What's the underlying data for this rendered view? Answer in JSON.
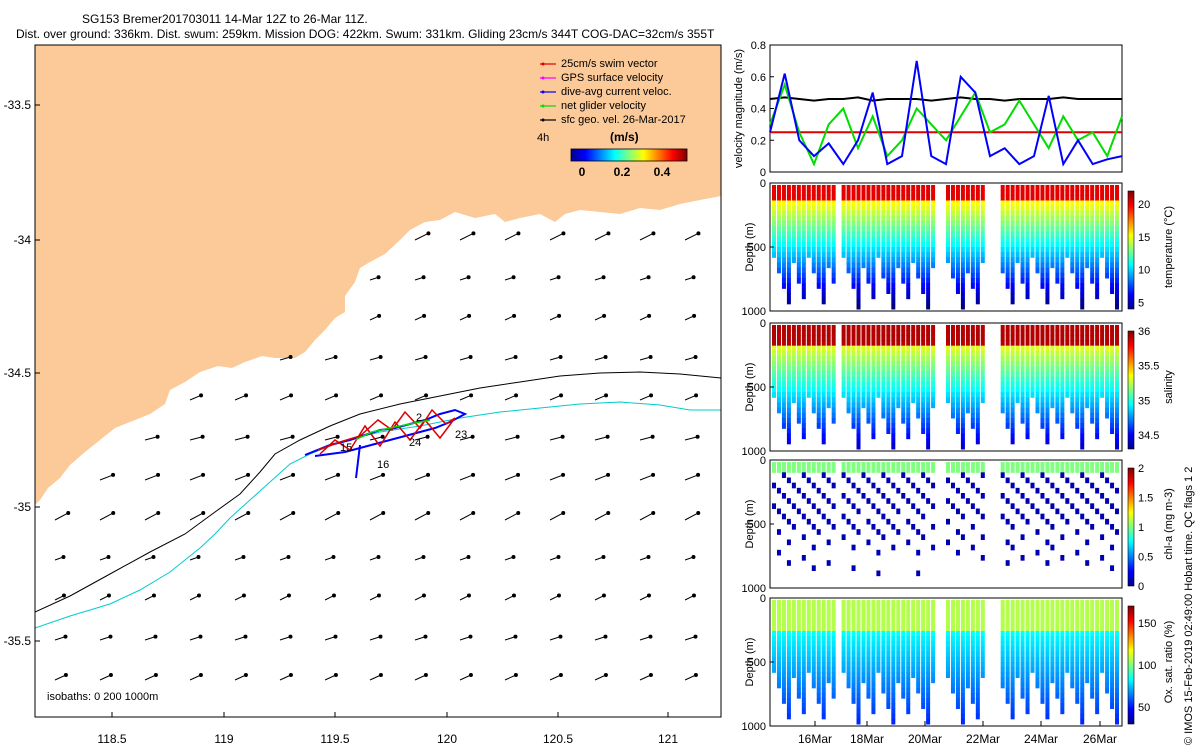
{
  "header": {
    "line1": "SG153 Bremer201703011 14-Mar 12Z to 26-Mar 11Z.",
    "line2": "Dist. over ground: 336km. Dist. swum: 259km. Mission DOG: 422km. Swum: 331km. Gliding 23cm/s 344T COG-DAC=32cm/s 355T"
  },
  "map": {
    "legend": [
      {
        "label": "25cm/s swim vector",
        "color": "#dd0000"
      },
      {
        "label": "GPS surface velocity",
        "color": "#ff00ff"
      },
      {
        "label": "dive-avg current veloc.",
        "color": "#0000ff"
      },
      {
        "label": "net glider velocity",
        "color": "#00dd00"
      },
      {
        "label": "sfc geo. vel. 26-Mar-2017",
        "color": "#000000"
      }
    ],
    "legend_note": "4h",
    "colorbar_unit": "(m/s)",
    "colorbar_ticks": [
      "0",
      "0.2",
      "0.4"
    ],
    "lon_ticks": [
      "118.5",
      "119",
      "119.5",
      "120",
      "120.5",
      "121"
    ],
    "lat_ticks": [
      "-33.5",
      "-34",
      "-34.5",
      "-35",
      "-35.5"
    ],
    "isobaths_label": "isobaths: 0   200   1000m",
    "track_labels": [
      "15",
      "16",
      "24",
      "23",
      "2"
    ],
    "land_color": "#fcc998",
    "isobath_200_color": "#000000",
    "isobath_1000_color": "#00cccc"
  },
  "chart_data": [
    {
      "type": "line",
      "ylabel": "velocity magnitude (m/s)",
      "ylim": [
        0,
        0.8
      ],
      "yticks": [
        "0",
        "0.2",
        "0.4",
        "0.6",
        "0.8"
      ],
      "series": [
        {
          "color": "#000000",
          "values": [
            0.46,
            0.47,
            0.46,
            0.45,
            0.46,
            0.46,
            0.47,
            0.45,
            0.46,
            0.46,
            0.46,
            0.45,
            0.46,
            0.47,
            0.46,
            0.46,
            0.45,
            0.46,
            0.46,
            0.46,
            0.47,
            0.46,
            0.46,
            0.46,
            0.46
          ]
        },
        {
          "color": "#dd0000",
          "values": [
            0.25,
            0.25,
            0.25,
            0.25,
            0.25,
            0.25,
            0.25,
            0.25,
            0.25,
            0.25,
            0.25,
            0.25,
            0.25,
            0.25,
            0.25,
            0.25,
            0.25,
            0.25,
            0.25,
            0.25,
            0.25,
            0.25,
            0.25,
            0.25,
            0.25
          ]
        },
        {
          "color": "#00dd00",
          "values": [
            0.3,
            0.55,
            0.25,
            0.05,
            0.3,
            0.4,
            0.15,
            0.35,
            0.1,
            0.2,
            0.4,
            0.3,
            0.2,
            0.35,
            0.5,
            0.25,
            0.3,
            0.45,
            0.3,
            0.15,
            0.35,
            0.2,
            0.25,
            0.1,
            0.35
          ]
        },
        {
          "color": "#0000ff",
          "values": [
            0.25,
            0.62,
            0.2,
            0.1,
            0.18,
            0.05,
            0.2,
            0.5,
            0.05,
            0.1,
            0.7,
            0.1,
            0.05,
            0.6,
            0.5,
            0.1,
            0.15,
            0.05,
            0.1,
            0.48,
            0.05,
            0.2,
            0.05,
            0.08,
            0.1
          ]
        }
      ]
    },
    {
      "type": "heatmap",
      "ylabel": "Depth (m)",
      "yticks": [
        "0",
        "500",
        "1000"
      ],
      "colorbar_label": "temperature (°C)",
      "colorbar_ticks": [
        "5",
        "10",
        "15",
        "20"
      ],
      "range": [
        4,
        22
      ]
    },
    {
      "type": "heatmap",
      "ylabel": "Depth (m)",
      "yticks": [
        "0",
        "500",
        "1000"
      ],
      "colorbar_label": "salinity",
      "colorbar_ticks": [
        "34.5",
        "35",
        "35.5",
        "36"
      ],
      "range": [
        34.3,
        36
      ]
    },
    {
      "type": "heatmap",
      "ylabel": "Depth (m)",
      "yticks": [
        "0",
        "500",
        "1000"
      ],
      "colorbar_label": "chl-a (mg m-3)",
      "colorbar_ticks": [
        "0",
        "0.5",
        "1",
        "1.5",
        "2"
      ],
      "range": [
        0,
        2
      ]
    },
    {
      "type": "heatmap",
      "ylabel": "Depth (m)",
      "yticks": [
        "0",
        "500",
        "1000"
      ],
      "colorbar_label": "Ox. sat. ratio (%)",
      "colorbar_ticks": [
        "50",
        "100",
        "150"
      ],
      "range": [
        30,
        170
      ]
    }
  ],
  "x_date_ticks": [
    "16Mar",
    "18Mar",
    "20Mar",
    "22Mar",
    "24Mar",
    "26Mar"
  ],
  "side_note": "© IMOS 15-Feb-2019 02:49:00 Hobart time. QC flags 1  2"
}
